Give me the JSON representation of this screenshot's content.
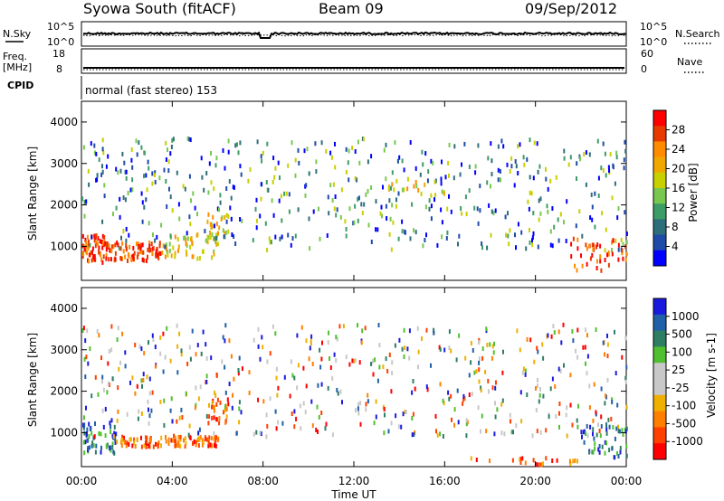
{
  "header": {
    "station": "Syowa South (fitACF)",
    "beam": "Beam 09",
    "date": "09/Sep/2012"
  },
  "strip": {
    "nsky_label": "N.Sky",
    "nsky_ticks": [
      "10^5",
      "10^0"
    ],
    "nsearch_label": "N.Search",
    "nsearch_ticks": [
      "10^5",
      "10^0"
    ],
    "freq_label": "Freq.",
    "freq_unit": "[MHz]",
    "freq_ticks": [
      "18",
      "8"
    ],
    "nave_label": "Nave",
    "nave_ticks": [
      "60",
      "0"
    ],
    "cpid_label": "CPID",
    "cpid_text": "normal (fast stereo) 153"
  },
  "axes": {
    "ylabel": "Slant Range [km]",
    "xlabel": "Time UT",
    "yticks": [
      "4000",
      "3000",
      "2000",
      "1000"
    ],
    "xticks": [
      "00:00",
      "04:00",
      "08:00",
      "12:00",
      "16:00",
      "20:00",
      "00:00"
    ]
  },
  "colorbars": {
    "power": {
      "label": "Power [dB]",
      "ticks": [
        "28",
        "24",
        "20",
        "16",
        "12",
        "8",
        "4"
      ],
      "colors": [
        "#ff0000",
        "#e83a00",
        "#ff8c00",
        "#f0a800",
        "#c8d000",
        "#78c850",
        "#3e9c66",
        "#2e6e7a",
        "#1f4aa8",
        "#0000ff"
      ]
    },
    "velocity": {
      "label": "Velocity [m s-1]",
      "ticks": [
        "1000",
        "500",
        "100",
        "25",
        "-25",
        "-100",
        "-500",
        "-1000"
      ],
      "colors": [
        "#1a1adf",
        "#2060a8",
        "#2e7e64",
        "#50c030",
        "#c8c8c8",
        "#c8c8c8",
        "#f0b000",
        "#ff8000",
        "#ff4000",
        "#ff0000"
      ]
    }
  },
  "chart_data": [
    {
      "type": "scatter",
      "title": "",
      "xlabel": "Time UT",
      "ylabel": "Slant Range [km]",
      "xlim": [
        0,
        24
      ],
      "ylim": [
        180,
        4500
      ],
      "colorbar": "Power [dB]",
      "clusters": [
        {
          "t": [
            0.0,
            1.0
          ],
          "r": [
            600,
            1300
          ],
          "level": "high",
          "n": 60
        },
        {
          "t": [
            1.0,
            3.5
          ],
          "r": [
            650,
            1100
          ],
          "level": "high",
          "n": 90
        },
        {
          "t": [
            3.5,
            6.0
          ],
          "r": [
            700,
            1300
          ],
          "level": "mid",
          "n": 50
        },
        {
          "t": [
            5.5,
            6.5
          ],
          "r": [
            1200,
            1800
          ],
          "level": "mid",
          "n": 25
        },
        {
          "t": [
            0.0,
            24.0
          ],
          "r": [
            900,
            3600
          ],
          "level": "low",
          "n": 520
        },
        {
          "t": [
            13.5,
            16.0
          ],
          "r": [
            2200,
            2600
          ],
          "level": "mid",
          "n": 20
        },
        {
          "t": [
            21.5,
            24.0
          ],
          "r": [
            400,
            1200
          ],
          "level": "high",
          "n": 45
        }
      ]
    },
    {
      "type": "scatter",
      "title": "",
      "xlabel": "Time UT",
      "ylabel": "Slant Range [km]",
      "xlim": [
        0,
        24
      ],
      "ylim": [
        180,
        4500
      ],
      "colorbar": "Velocity [m s-1]",
      "clusters": [
        {
          "t": [
            0.0,
            1.5
          ],
          "r": [
            500,
            1300
          ],
          "level": "pos",
          "n": 60
        },
        {
          "t": [
            1.5,
            6.0
          ],
          "r": [
            650,
            900
          ],
          "level": "neg",
          "n": 110
        },
        {
          "t": [
            5.5,
            6.5
          ],
          "r": [
            1200,
            1800
          ],
          "level": "neg",
          "n": 25
        },
        {
          "t": [
            0.0,
            24.0
          ],
          "r": [
            900,
            3600
          ],
          "level": "mixed",
          "n": 520
        },
        {
          "t": [
            17.0,
            22.0
          ],
          "r": [
            180,
            400
          ],
          "level": "neg",
          "n": 30
        },
        {
          "t": [
            22.0,
            24.0
          ],
          "r": [
            400,
            1200
          ],
          "level": "pos",
          "n": 45
        }
      ]
    }
  ]
}
